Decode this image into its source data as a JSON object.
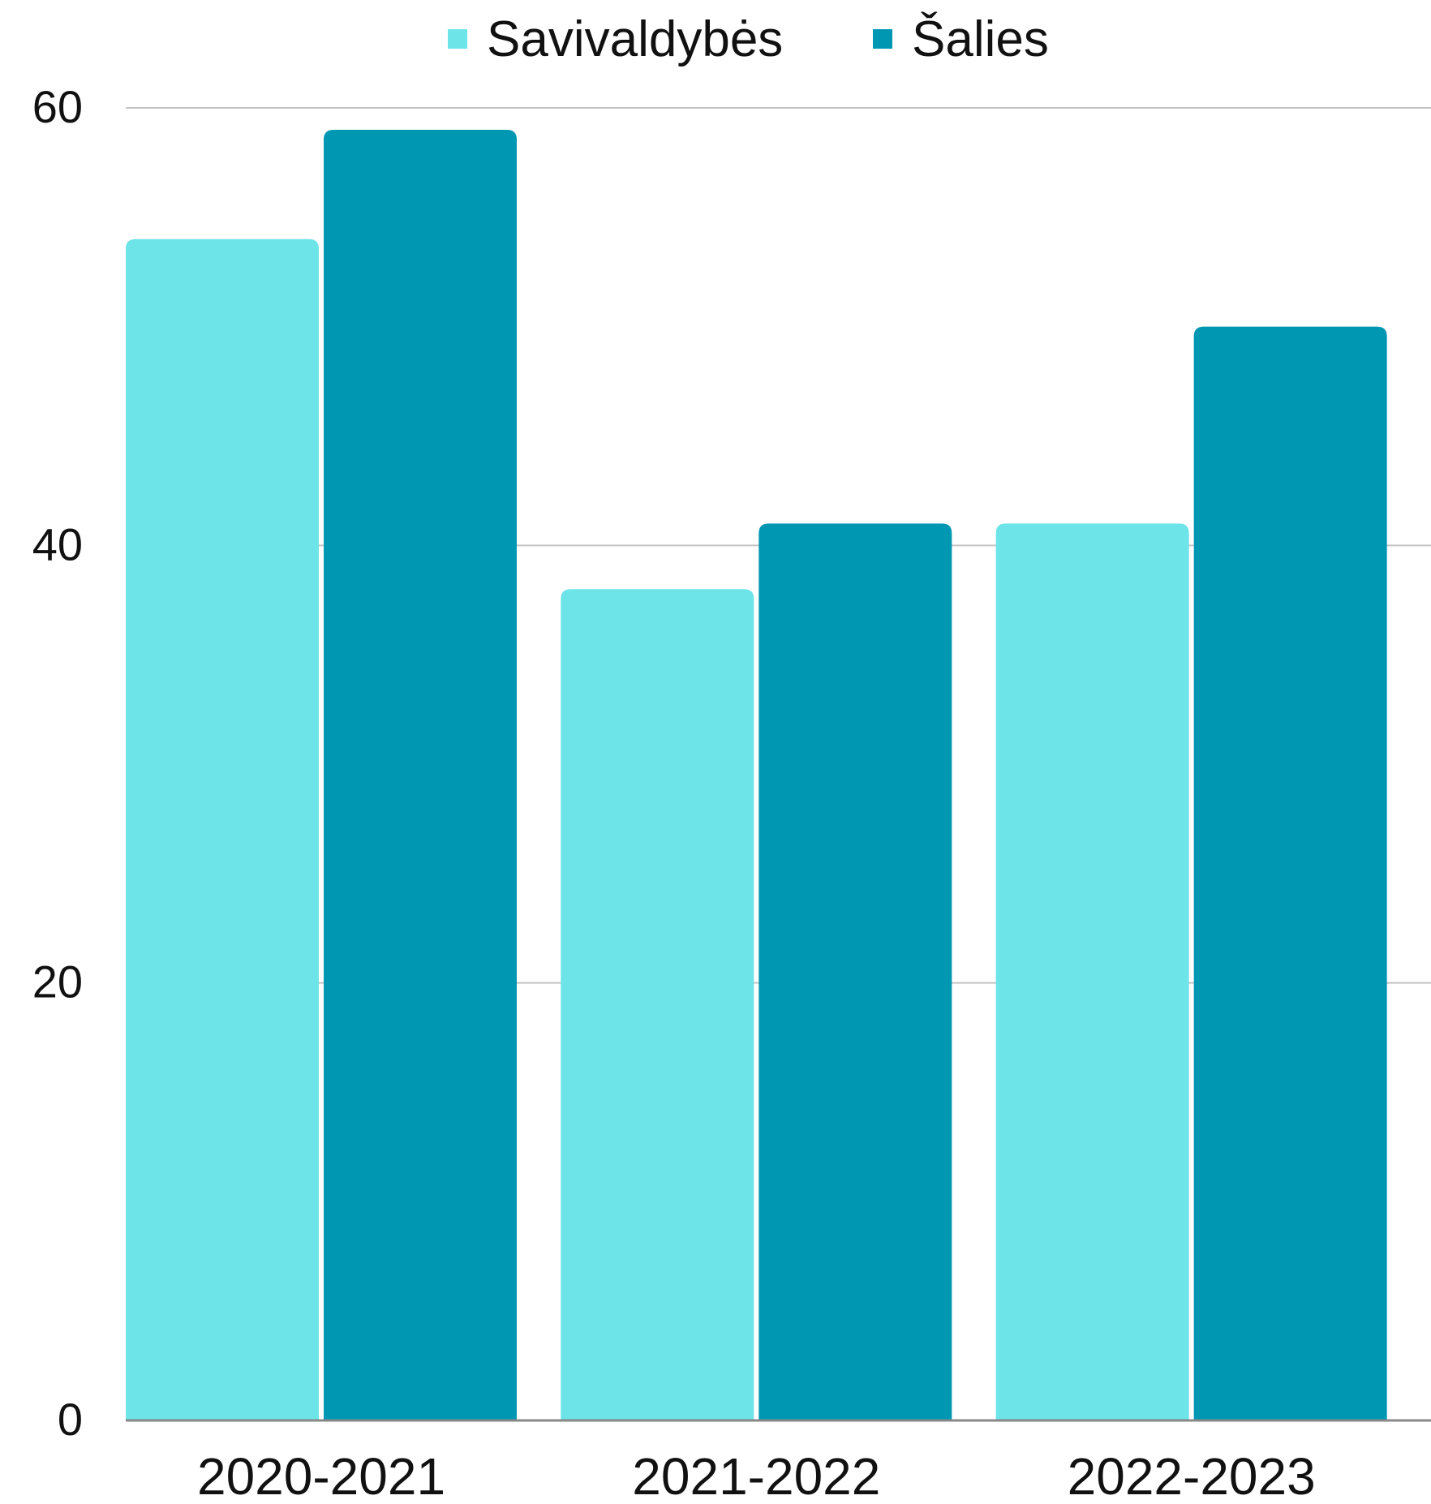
{
  "chart_data": {
    "type": "bar",
    "categories": [
      "2020-2021",
      "2021-2022",
      "2022-2023"
    ],
    "series": [
      {
        "name": "Savivaldybės",
        "values": [
          54,
          38,
          41
        ],
        "color": "#6ce4e8"
      },
      {
        "name": "Šalies",
        "values": [
          59,
          41,
          50
        ],
        "color": "#0097b2"
      }
    ],
    "ylim": [
      0,
      60
    ],
    "yticks": [
      0,
      20,
      40,
      60
    ],
    "grid": true,
    "legend_position": "top-center",
    "gridline_color": "#c4c4c4",
    "axis_color": "#888888"
  }
}
